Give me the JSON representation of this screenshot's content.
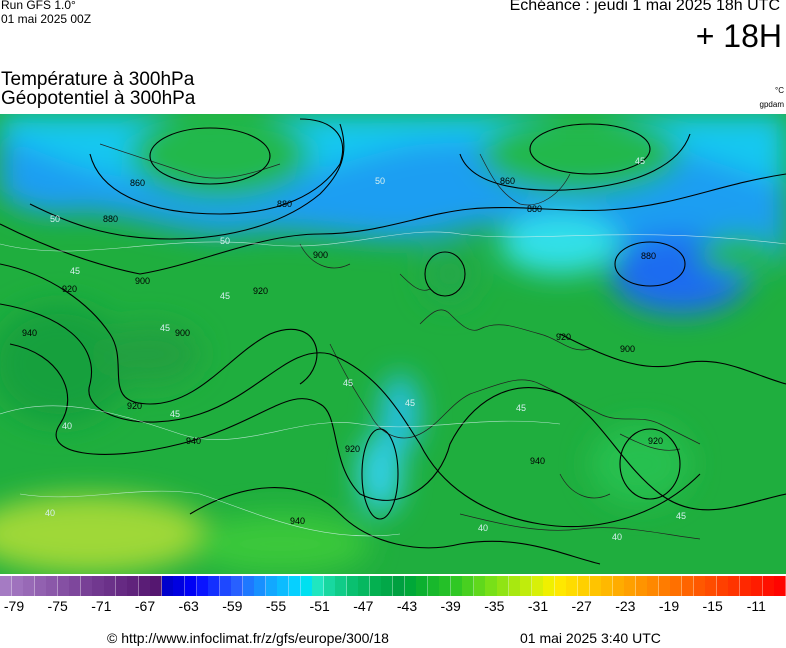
{
  "header": {
    "run_line": "Run GFS 1.0°",
    "run_date": "01 mai 2025 00Z",
    "echeance": "Echéance : jeudi 1 mai 2025 18h UTC",
    "lead": "+ 18H"
  },
  "titles": {
    "line1": "Température à 300hPa",
    "line2": "Géopotentiel à 300hPa",
    "unit_temp": "°C",
    "unit_geo": "gpdam"
  },
  "map": {
    "geopotential_labels": [
      "860",
      "880",
      "900",
      "920",
      "940",
      "860",
      "880",
      "880",
      "900",
      "920",
      "880",
      "900",
      "920",
      "940",
      "920",
      "920",
      "940",
      "940",
      "900",
      "920"
    ],
    "temperature_labels": [
      "50",
      "50",
      "45",
      "45",
      "45",
      "45",
      "45",
      "45",
      "40",
      "40",
      "40",
      "45",
      "45",
      "40",
      "50",
      "45"
    ]
  },
  "colors": {
    "ocean_green": "#1a9e36",
    "cold_blue": "#1a7ef0",
    "cyan": "#22c8f0",
    "aqua": "#35e0e0",
    "land_green": "#22b84a",
    "warm_yellow": "#b8e030"
  },
  "scale": {
    "labels": [
      "-79",
      "-75",
      "-71",
      "-67",
      "-63",
      "-59",
      "-55",
      "-51",
      "-47",
      "-43",
      "-39",
      "-35",
      "-31",
      "-27",
      "-23",
      "-19",
      "-15",
      "-11"
    ],
    "swatches": [
      "#a57bc3",
      "#9f72bd",
      "#9869b6",
      "#9261b0",
      "#8b58a9",
      "#8550a3",
      "#7e479c",
      "#784096",
      "#71388f",
      "#6b3189",
      "#662a83",
      "#60237c",
      "#5a1d76",
      "#551770",
      "#0000cc",
      "#0000e0",
      "#0000f5",
      "#0a14ff",
      "#1430ff",
      "#1e48ff",
      "#2860ff",
      "#1e78ff",
      "#1890ff",
      "#12a8ff",
      "#0cbcff",
      "#06d0ff",
      "#00e0f0",
      "#20e6c0",
      "#18d8a0",
      "#10cc88",
      "#0ac070",
      "#06b860",
      "#04b050",
      "#02a848",
      "#00a040",
      "#00a838",
      "#0cb030",
      "#18b82c",
      "#24c028",
      "#30c824",
      "#48d020",
      "#60d81c",
      "#78e018",
      "#90e414",
      "#a8e810",
      "#c0ec0c",
      "#d8f008",
      "#f0f000",
      "#ffe800",
      "#ffdc00",
      "#ffd000",
      "#ffc400",
      "#ffb800",
      "#ffac00",
      "#ffa000",
      "#ff9400",
      "#ff8800",
      "#ff7c00",
      "#ff7000",
      "#ff6400",
      "#ff5800",
      "#ff4c00",
      "#ff4000",
      "#ff3400",
      "#ff2800",
      "#ff1c00",
      "#ff1000",
      "#ff0400"
    ]
  },
  "footer": {
    "copyright": "© http://www.infoclimat.fr/z/gfs/europe/300/18",
    "date": "01 mai 2025  3:40 UTC"
  }
}
